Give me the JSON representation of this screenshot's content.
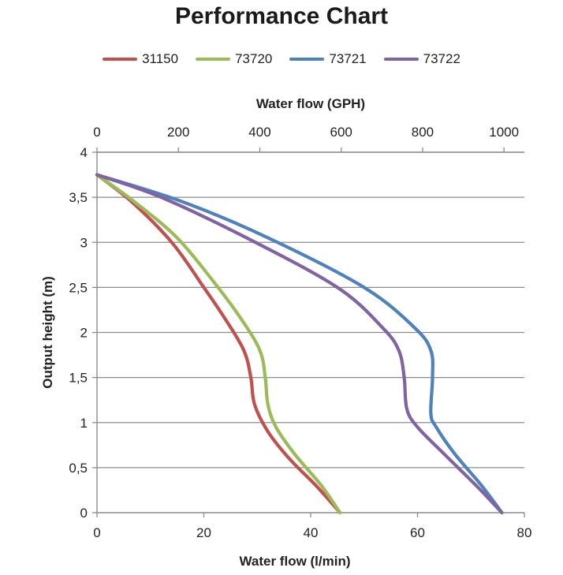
{
  "chart_data": {
    "type": "line",
    "title": "Performance Chart",
    "top_axis_label": "Water flow (GPH)",
    "xlabel": "Water flow (l/min)",
    "ylabel": "Output height (m)",
    "xlim": [
      0,
      80
    ],
    "x_ticks": [
      "0",
      "20",
      "40",
      "60",
      "80"
    ],
    "top_xlim": [
      0,
      1050
    ],
    "top_ticks": [
      "0",
      "200",
      "400",
      "600",
      "800",
      "1000"
    ],
    "ylim": [
      0,
      4
    ],
    "y_ticks": [
      "0",
      "0,5",
      "1",
      "1,5",
      "2",
      "2,5",
      "3",
      "3,5",
      "4"
    ],
    "gridlines": "horizontal",
    "legend_position": "top",
    "series": [
      {
        "name": "31150",
        "color": "#c0504d",
        "points": [
          [
            45.5,
            0
          ],
          [
            41,
            0.3
          ],
          [
            36,
            0.6
          ],
          [
            32,
            0.9
          ],
          [
            29.5,
            1.2
          ],
          [
            28.8,
            1.5
          ],
          [
            27.5,
            1.8
          ],
          [
            24,
            2.15
          ],
          [
            20,
            2.5
          ],
          [
            14,
            3.0
          ],
          [
            6.5,
            3.45
          ],
          [
            0,
            3.75
          ]
        ]
      },
      {
        "name": "73720",
        "color": "#9bbb59",
        "points": [
          [
            45.5,
            0
          ],
          [
            42,
            0.3
          ],
          [
            37,
            0.65
          ],
          [
            33.5,
            0.95
          ],
          [
            32,
            1.2
          ],
          [
            31.5,
            1.5
          ],
          [
            30.5,
            1.8
          ],
          [
            27,
            2.15
          ],
          [
            22,
            2.55
          ],
          [
            15,
            3.05
          ],
          [
            7,
            3.45
          ],
          [
            0,
            3.75
          ]
        ]
      },
      {
        "name": "73721",
        "color": "#4f81bd",
        "points": [
          [
            75.8,
            0
          ],
          [
            72,
            0.3
          ],
          [
            67,
            0.65
          ],
          [
            63.5,
            0.95
          ],
          [
            62.5,
            1.1
          ],
          [
            62.8,
            1.5
          ],
          [
            62.5,
            1.8
          ],
          [
            59.5,
            2.05
          ],
          [
            50,
            2.5
          ],
          [
            32,
            3.05
          ],
          [
            16,
            3.45
          ],
          [
            0,
            3.75
          ]
        ]
      },
      {
        "name": "73722",
        "color": "#8064a2",
        "points": [
          [
            75.8,
            0
          ],
          [
            71,
            0.3
          ],
          [
            65,
            0.65
          ],
          [
            60,
            0.95
          ],
          [
            58,
            1.15
          ],
          [
            57.5,
            1.5
          ],
          [
            56.5,
            1.8
          ],
          [
            53.5,
            2.05
          ],
          [
            45,
            2.5
          ],
          [
            28,
            3.05
          ],
          [
            12,
            3.5
          ],
          [
            0,
            3.75
          ]
        ]
      }
    ]
  }
}
